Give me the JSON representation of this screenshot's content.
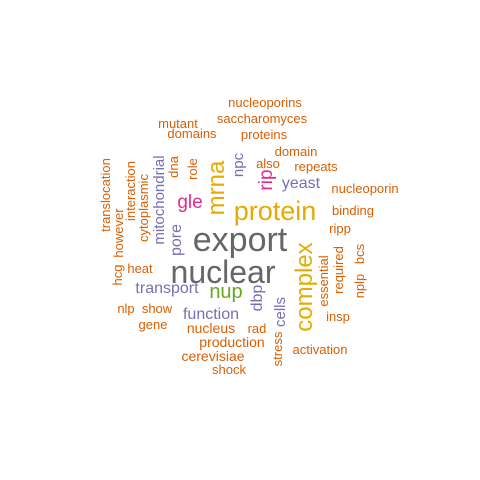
{
  "colors": {
    "background": "#ffffff",
    "orange": "#d95f02",
    "gold": "#e6ab02",
    "purple": "#7570b3",
    "gray": "#666666",
    "magenta": "#e7298a",
    "green": "#66a61e"
  },
  "words": [
    {
      "text": "export",
      "color": "gray"
    },
    {
      "text": "nuclear",
      "color": "gray"
    },
    {
      "text": "protein",
      "color": "gold"
    },
    {
      "text": "complex",
      "color": "gold"
    },
    {
      "text": "mrna",
      "color": "gold"
    },
    {
      "text": "nup",
      "color": "green"
    },
    {
      "text": "gle",
      "color": "magenta"
    },
    {
      "text": "rip",
      "color": "magenta"
    },
    {
      "text": "yeast",
      "color": "purple"
    },
    {
      "text": "transport",
      "color": "purple"
    },
    {
      "text": "function",
      "color": "purple"
    },
    {
      "text": "pore",
      "color": "purple"
    },
    {
      "text": "mitochondrial",
      "color": "purple"
    },
    {
      "text": "npc",
      "color": "purple"
    },
    {
      "text": "dbp",
      "color": "purple"
    },
    {
      "text": "cells",
      "color": "purple"
    },
    {
      "text": "nucleoporins",
      "color": "orange"
    },
    {
      "text": "saccharomyces",
      "color": "orange"
    },
    {
      "text": "mutant",
      "color": "orange"
    },
    {
      "text": "domains",
      "color": "orange"
    },
    {
      "text": "proteins",
      "color": "orange"
    },
    {
      "text": "domain",
      "color": "orange"
    },
    {
      "text": "also",
      "color": "orange"
    },
    {
      "text": "repeats",
      "color": "orange"
    },
    {
      "text": "nucleoporin",
      "color": "orange"
    },
    {
      "text": "binding",
      "color": "orange"
    },
    {
      "text": "ripp",
      "color": "orange"
    },
    {
      "text": "role",
      "color": "orange"
    },
    {
      "text": "dna",
      "color": "orange"
    },
    {
      "text": "cytoplasmic",
      "color": "orange"
    },
    {
      "text": "interaction",
      "color": "orange"
    },
    {
      "text": "translocation",
      "color": "orange"
    },
    {
      "text": "however",
      "color": "orange"
    },
    {
      "text": "hcg",
      "color": "orange"
    },
    {
      "text": "heat",
      "color": "orange"
    },
    {
      "text": "nlp",
      "color": "orange"
    },
    {
      "text": "show",
      "color": "orange"
    },
    {
      "text": "gene",
      "color": "orange"
    },
    {
      "text": "nucleus",
      "color": "orange"
    },
    {
      "text": "rad",
      "color": "orange"
    },
    {
      "text": "production",
      "color": "orange"
    },
    {
      "text": "cerevisiae",
      "color": "orange"
    },
    {
      "text": "shock",
      "color": "orange"
    },
    {
      "text": "stress",
      "color": "orange"
    },
    {
      "text": "activation",
      "color": "orange"
    },
    {
      "text": "essential",
      "color": "orange"
    },
    {
      "text": "required",
      "color": "orange"
    },
    {
      "text": "nplp",
      "color": "orange"
    },
    {
      "text": "bcs",
      "color": "orange"
    },
    {
      "text": "insp",
      "color": "orange"
    }
  ]
}
